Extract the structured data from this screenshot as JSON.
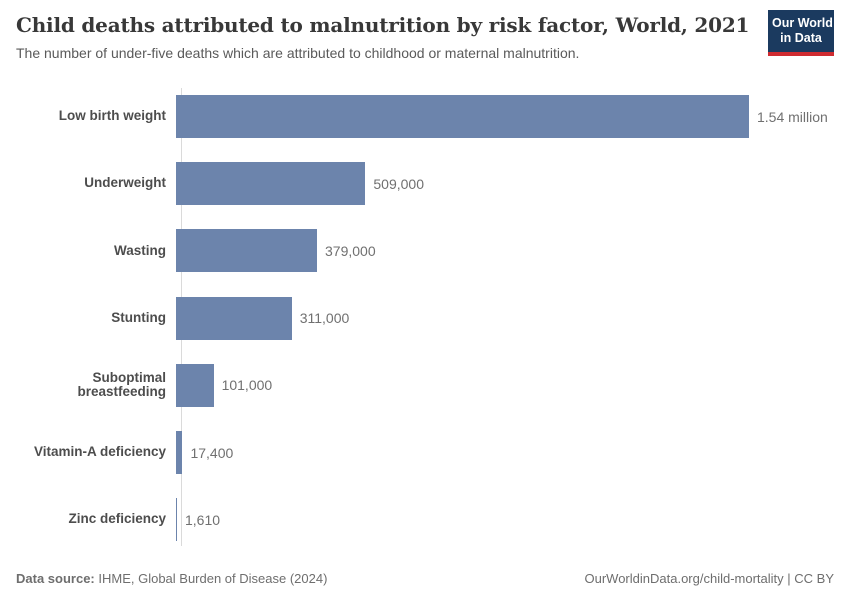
{
  "header": {
    "title": "Child deaths attributed to malnutrition by risk factor, World, 2021",
    "subtitle": "The number of under-five deaths which are attributed to childhood or maternal malnutrition.",
    "logo": {
      "line1": "Our World",
      "line2": "in Data"
    }
  },
  "chart_data": {
    "type": "bar",
    "orientation": "horizontal",
    "title": "Child deaths attributed to malnutrition by risk factor, World, 2021",
    "xlabel": "",
    "ylabel": "",
    "grid": false,
    "legend": "none",
    "xlim": [
      0,
      1540000
    ],
    "categories": [
      "Low birth weight",
      "Underweight",
      "Wasting",
      "Stunting",
      "Suboptimal breastfeeding",
      "Vitamin-A deficiency",
      "Zinc deficiency"
    ],
    "values": [
      1540000,
      509000,
      379000,
      311000,
      101000,
      17400,
      1610
    ],
    "value_labels": [
      "1.54 million",
      "509,000",
      "379,000",
      "311,000",
      "101,000",
      "17,400",
      "1,610"
    ],
    "bar_color": "#6c84ac"
  },
  "footer": {
    "datasource_label": "Data source:",
    "datasource_value": " IHME, Global Burden of Disease (2024)",
    "link": "OurWorldinData.org/child-mortality | CC BY"
  },
  "colors": {
    "bar": "#6c84ac",
    "logo_background": "#1b3a5f",
    "logo_underline": "#cf2b30",
    "axis_line": "#dadada",
    "title_text": "#383838",
    "subtitle_text": "#5a5a5a",
    "category_text": "#4d4d4d",
    "value_text": "#707070",
    "footer_text": "#6e6e6e"
  }
}
